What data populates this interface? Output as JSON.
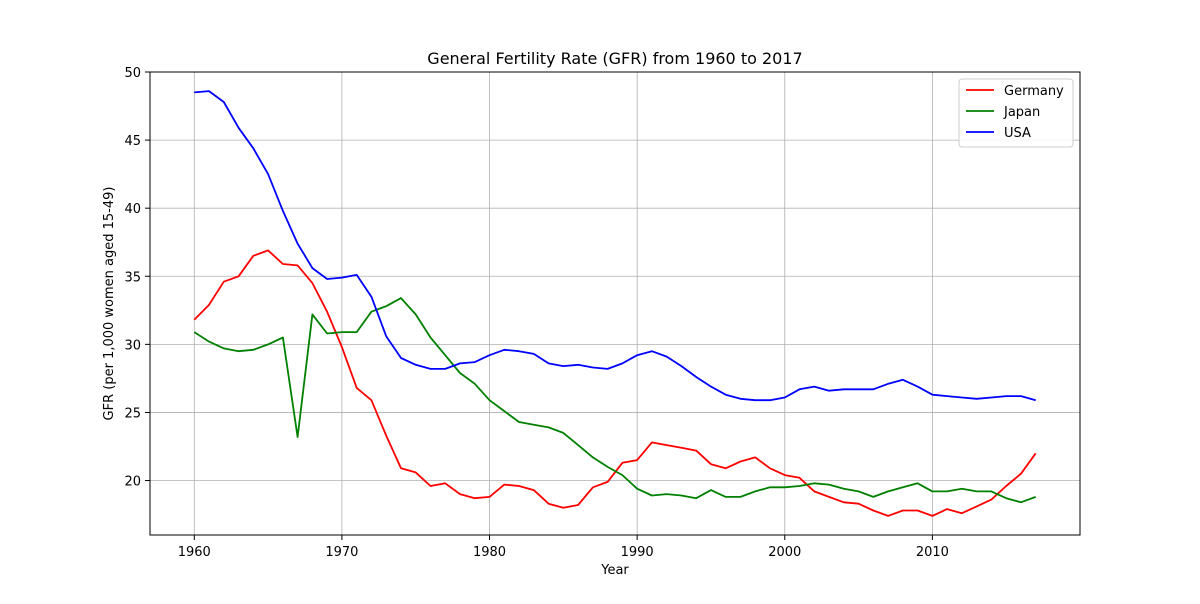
{
  "chart_data": {
    "type": "line",
    "title": "General Fertility Rate (GFR) from 1960 to 2017",
    "xlabel": "Year",
    "ylabel": "GFR (per 1,000 women aged 15-49)",
    "xlim": [
      1957,
      2020
    ],
    "ylim": [
      16,
      50
    ],
    "xticks": [
      1960,
      1970,
      1980,
      1990,
      2000,
      2010
    ],
    "yticks": [
      20,
      25,
      30,
      35,
      40,
      45,
      50
    ],
    "grid": true,
    "legend_position": "top-right",
    "x": [
      1960,
      1961,
      1962,
      1963,
      1964,
      1965,
      1966,
      1967,
      1968,
      1969,
      1970,
      1971,
      1972,
      1973,
      1974,
      1975,
      1976,
      1977,
      1978,
      1979,
      1980,
      1981,
      1982,
      1983,
      1984,
      1985,
      1986,
      1987,
      1988,
      1989,
      1990,
      1991,
      1992,
      1993,
      1994,
      1995,
      1996,
      1997,
      1998,
      1999,
      2000,
      2001,
      2002,
      2003,
      2004,
      2005,
      2006,
      2007,
      2008,
      2009,
      2010,
      2011,
      2012,
      2013,
      2014,
      2015,
      2016,
      2017
    ],
    "series": [
      {
        "name": "Germany",
        "color": "#ff0000",
        "values": [
          31.8,
          32.9,
          34.6,
          35.0,
          36.5,
          36.9,
          35.9,
          35.8,
          34.5,
          32.4,
          29.8,
          26.8,
          25.9,
          23.3,
          20.9,
          20.6,
          19.6,
          19.8,
          19.0,
          18.7,
          18.8,
          19.7,
          19.6,
          19.3,
          18.3,
          18.0,
          18.2,
          19.5,
          19.9,
          21.3,
          21.5,
          22.8,
          22.6,
          22.4,
          22.2,
          21.2,
          20.9,
          21.4,
          21.7,
          20.9,
          20.4,
          20.2,
          19.2,
          18.8,
          18.4,
          18.3,
          17.8,
          17.4,
          17.8,
          17.8,
          17.4,
          17.9,
          17.6,
          18.1,
          18.6,
          19.6,
          20.5,
          22.0
        ]
      },
      {
        "name": "Japan",
        "color": "#008000",
        "values": [
          30.9,
          30.2,
          29.7,
          29.5,
          29.6,
          30.0,
          30.5,
          23.2,
          32.2,
          30.8,
          30.9,
          30.9,
          32.4,
          32.8,
          33.4,
          32.2,
          30.5,
          29.2,
          27.9,
          27.1,
          25.9,
          25.1,
          24.3,
          24.1,
          23.9,
          23.5,
          22.6,
          21.7,
          21.0,
          20.4,
          19.4,
          18.9,
          19.0,
          18.9,
          18.7,
          19.3,
          18.8,
          18.8,
          19.2,
          19.5,
          19.5,
          19.6,
          19.8,
          19.7,
          19.4,
          19.2,
          18.8,
          19.2,
          19.5,
          19.8,
          19.2,
          19.2,
          19.4,
          19.2,
          19.2,
          18.7,
          18.4,
          18.8
        ]
      },
      {
        "name": "USA",
        "color": "#0000ff",
        "values": [
          48.5,
          48.6,
          47.8,
          45.9,
          44.4,
          42.5,
          39.8,
          37.4,
          35.6,
          34.8,
          34.9,
          35.1,
          33.5,
          30.6,
          29.0,
          28.5,
          28.2,
          28.2,
          28.6,
          28.7,
          29.2,
          29.6,
          29.5,
          29.3,
          28.6,
          28.4,
          28.5,
          28.3,
          28.2,
          28.6,
          29.2,
          29.5,
          29.1,
          28.4,
          27.6,
          26.9,
          26.3,
          26.0,
          25.9,
          25.9,
          26.1,
          26.7,
          26.9,
          26.6,
          26.7,
          26.7,
          26.7,
          27.1,
          27.4,
          26.9,
          26.3,
          26.2,
          26.1,
          26.0,
          26.1,
          26.2,
          26.2,
          25.9
        ]
      }
    ]
  }
}
